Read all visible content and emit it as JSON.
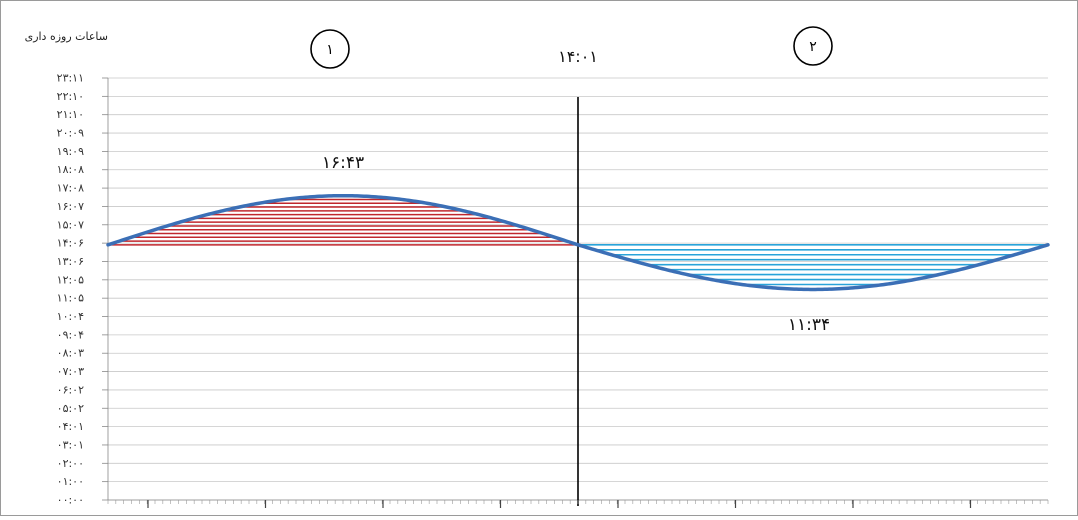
{
  "chart_data": {
    "type": "line",
    "ylabel": "ساعات روزه داری",
    "y_ticks": [
      "۰۰:۰۰",
      "۰۱:۰۰",
      "۰۲:۰۰",
      "۰۳:۰۱",
      "۰۴:۰۱",
      "۰۵:۰۲",
      "۰۶:۰۲",
      "۰۷:۰۳",
      "۰۸:۰۳",
      "۰۹:۰۴",
      "۱۰:۰۴",
      "۱۱:۰۵",
      "۱۲:۰۵",
      "۱۳:۰۶",
      "۱۴:۰۶",
      "۱۵:۰۷",
      "۱۶:۰۷",
      "۱۷:۰۸",
      "۱۸:۰۸",
      "۱۹:۰۹",
      "۲۰:۰۹",
      "۲۱:۱۰",
      "۲۲:۱۰",
      "۲۳:۱۱"
    ],
    "ylim": [
      0,
      23.183
    ],
    "x_range": [
      0,
      1
    ],
    "mean_hours": 14.017,
    "peak_hours": 16.717,
    "trough_hours": 11.567,
    "mean_label": "۱۴:۰۱",
    "peak_label": "۱۶:۴۳",
    "trough_label": "۱۱:۳۴",
    "sections": [
      {
        "label": "۱",
        "fill_color": "#c0272d"
      },
      {
        "label": "۲",
        "fill_color": "#29a3d9"
      }
    ],
    "curve_color": "#3b6fb6",
    "divider_x": 0.5,
    "grid": true
  }
}
